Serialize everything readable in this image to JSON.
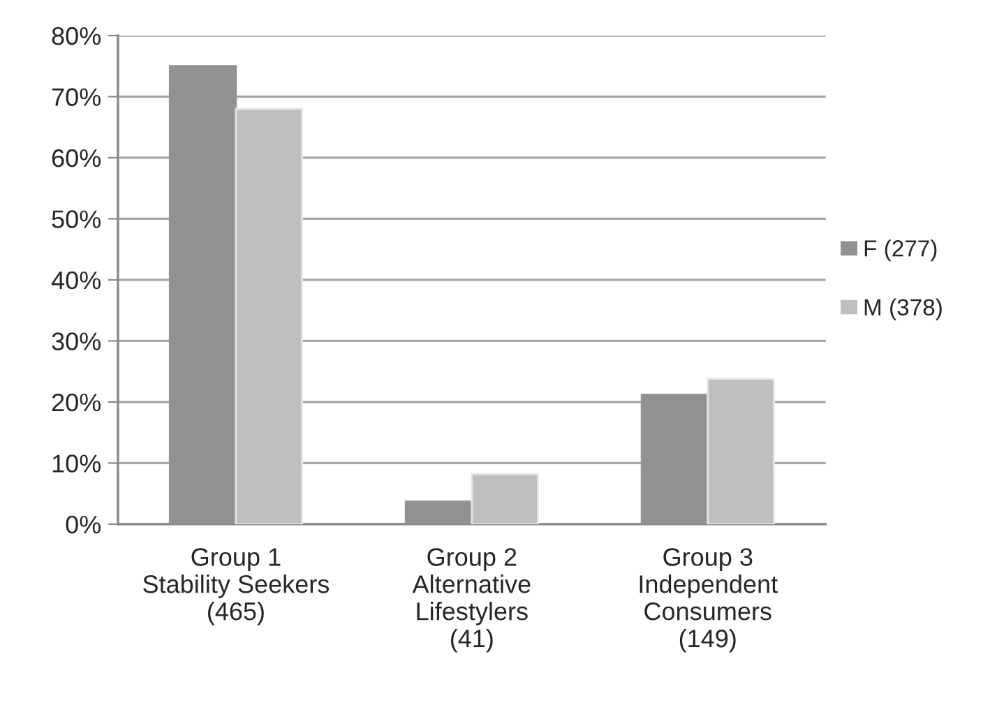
{
  "chart_data": {
    "type": "bar",
    "categories": [
      "Group 1\nStability Seekers\n(465)",
      "Group 2\nAlternative\nLifestylers\n(41)",
      "Group 3\nIndependent\nConsumers\n(149)"
    ],
    "series": [
      {
        "name": "F (277)",
        "color": "#929292",
        "values": [
          75,
          3.7,
          21.2
        ]
      },
      {
        "name": "M (378)",
        "color": "#bfbfbf",
        "values": [
          68,
          8.2,
          23.8
        ]
      }
    ],
    "ylim": [
      0,
      80
    ],
    "yticks": [
      {
        "value": 0,
        "label": "0%"
      },
      {
        "value": 10,
        "label": "10%"
      },
      {
        "value": 20,
        "label": "20%"
      },
      {
        "value": 30,
        "label": "30%"
      },
      {
        "value": 40,
        "label": "40%"
      },
      {
        "value": 50,
        "label": "50%"
      },
      {
        "value": 60,
        "label": "60%"
      },
      {
        "value": 70,
        "label": "70%"
      },
      {
        "value": 80,
        "label": "80%"
      }
    ],
    "grid": "y",
    "legend": "right"
  }
}
